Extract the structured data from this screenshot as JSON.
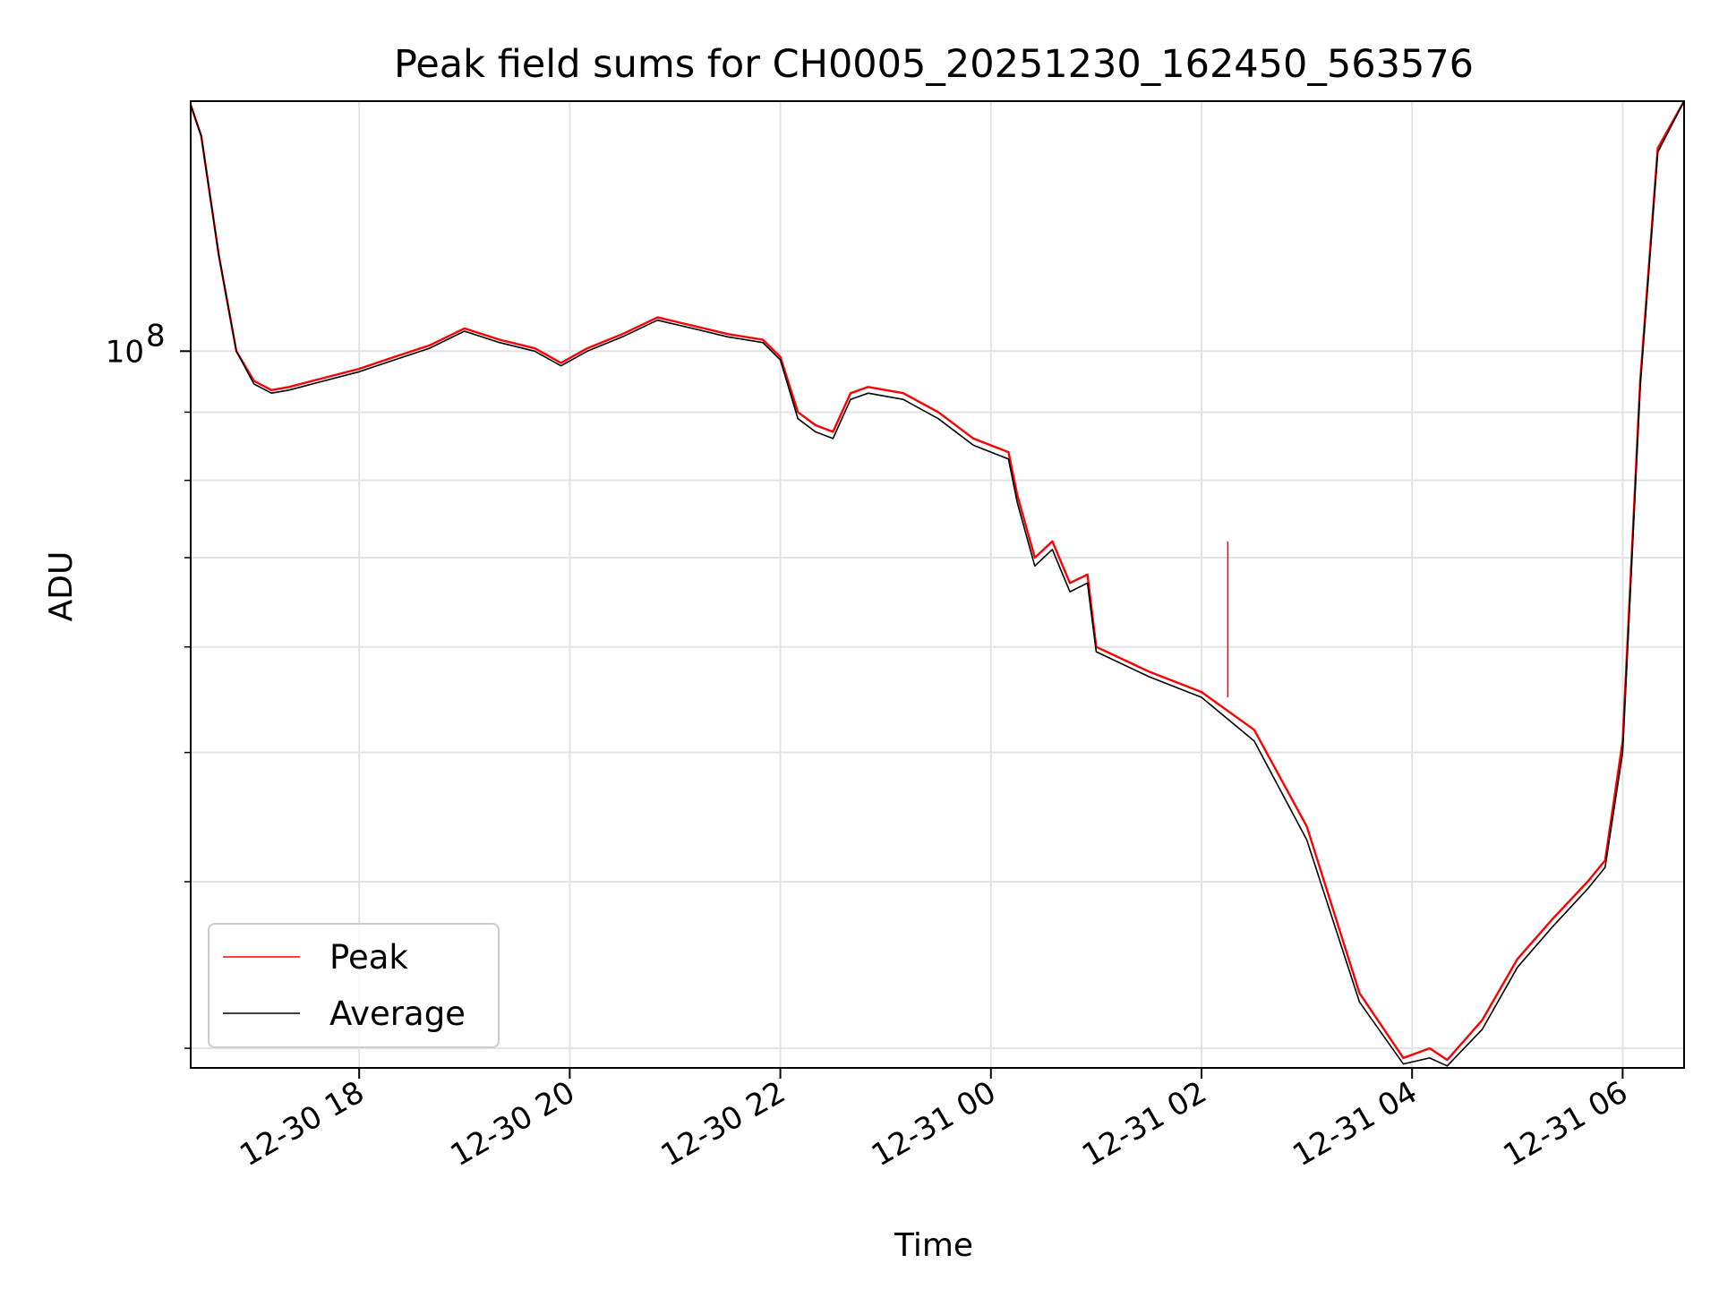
{
  "chart_data": {
    "type": "line",
    "title": "Peak field sums for CH0005_20251230_162450_563576",
    "xlabel": "Time",
    "ylabel": "ADU",
    "y_scale": "log",
    "xlim": [
      "2025-12-30 16:24",
      "2025-12-31 06:35"
    ],
    "ylim": [
      29000000,
      154000000
    ],
    "x_tick_labels": [
      "12-30 18",
      "12-30 20",
      "12-30 22",
      "12-31 00",
      "12-31 02",
      "12-31 04",
      "12-31 06"
    ],
    "x_ticks": [
      "2025-12-30 18:00",
      "2025-12-30 20:00",
      "2025-12-30 22:00",
      "2025-12-31 00:00",
      "2025-12-31 02:00",
      "2025-12-31 04:00",
      "2025-12-31 06:00"
    ],
    "y_tick_labels": [
      {
        "mantissa": "10",
        "exponent": "8",
        "value": 100000000
      }
    ],
    "y_minor_ticks": [
      30000000,
      40000000,
      50000000,
      60000000,
      70000000,
      80000000,
      90000000,
      200000000
    ],
    "grid": true,
    "legend_position": "lower-left",
    "x": [
      "2025-12-30 16:24",
      "2025-12-30 16:30",
      "2025-12-30 16:40",
      "2025-12-30 16:50",
      "2025-12-30 17:00",
      "2025-12-30 17:10",
      "2025-12-30 17:20",
      "2025-12-30 17:40",
      "2025-12-30 18:00",
      "2025-12-30 18:20",
      "2025-12-30 18:40",
      "2025-12-30 19:00",
      "2025-12-30 19:20",
      "2025-12-30 19:40",
      "2025-12-30 19:55",
      "2025-12-30 20:10",
      "2025-12-30 20:30",
      "2025-12-30 20:50",
      "2025-12-30 21:10",
      "2025-12-30 21:30",
      "2025-12-30 21:50",
      "2025-12-30 22:00",
      "2025-12-30 22:10",
      "2025-12-30 22:20",
      "2025-12-30 22:30",
      "2025-12-30 22:40",
      "2025-12-30 22:50",
      "2025-12-30 23:10",
      "2025-12-30 23:30",
      "2025-12-30 23:50",
      "2025-12-31 00:10",
      "2025-12-31 00:15",
      "2025-12-31 00:25",
      "2025-12-31 00:35",
      "2025-12-31 00:45",
      "2025-12-31 00:55",
      "2025-12-31 01:00",
      "2025-12-31 01:30",
      "2025-12-31 02:00",
      "2025-12-31 02:30",
      "2025-12-31 03:00",
      "2025-12-31 03:30",
      "2025-12-31 03:55",
      "2025-12-31 04:10",
      "2025-12-31 04:20",
      "2025-12-31 04:40",
      "2025-12-31 05:00",
      "2025-12-31 05:20",
      "2025-12-31 05:40",
      "2025-12-31 05:50",
      "2025-12-31 06:00",
      "2025-12-31 06:10",
      "2025-12-31 06:20",
      "2025-12-31 06:35"
    ],
    "series": [
      {
        "name": "Peak",
        "color": "#ff0000",
        "values": [
          153000000,
          145000000,
          118000000,
          100000000,
          95000000,
          93500000,
          94000000,
          95500000,
          97000000,
          99000000,
          101000000,
          104000000,
          102000000,
          100500000,
          98000000,
          100500000,
          103000000,
          106000000,
          104500000,
          103000000,
          102000000,
          99000000,
          90000000,
          88000000,
          87000000,
          93000000,
          94000000,
          93000000,
          90000000,
          86000000,
          84000000,
          78000000,
          70000000,
          72000000,
          67000000,
          68000000,
          60000000,
          57500000,
          55500000,
          52000000,
          44000000,
          33000000,
          29500000,
          30000000,
          29400000,
          31500000,
          35000000,
          37500000,
          40000000,
          41500000,
          51000000,
          95000000,
          142000000,
          154000000
        ]
      },
      {
        "name": "Average",
        "color": "#000000",
        "values": [
          153000000,
          145000000,
          118000000,
          100000000,
          94500000,
          93000000,
          93500000,
          95000000,
          96500000,
          98500000,
          100500000,
          103500000,
          101500000,
          100000000,
          97500000,
          100000000,
          102500000,
          105500000,
          104000000,
          102500000,
          101500000,
          98500000,
          89000000,
          87000000,
          86000000,
          92000000,
          93000000,
          92000000,
          89000000,
          85000000,
          83000000,
          77000000,
          69000000,
          71000000,
          66000000,
          67000000,
          59500000,
          57000000,
          55000000,
          51000000,
          43000000,
          32500000,
          29200000,
          29500000,
          29100000,
          31000000,
          34500000,
          37000000,
          39500000,
          41000000,
          50000000,
          94000000,
          141000000,
          154000000
        ]
      }
    ],
    "annotations": [
      {
        "series": "Peak",
        "type": "spike",
        "x": "2025-12-31 02:15",
        "from": 55000000,
        "to": 72000000
      }
    ]
  }
}
